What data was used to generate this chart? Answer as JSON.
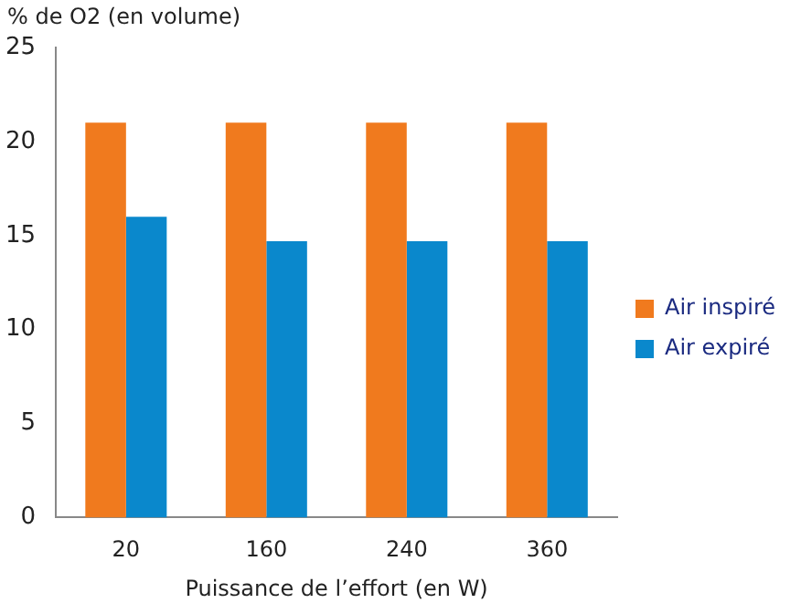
{
  "chart_data": {
    "type": "bar",
    "ylabel": "% de O2 (en volume)",
    "xlabel": "Puissance de l’effort (en W)",
    "categories": [
      "20",
      "160",
      "240",
      "360"
    ],
    "series": [
      {
        "name": "Air inspiré",
        "color": "#f07a1e",
        "values": [
          21,
          21,
          21,
          21
        ]
      },
      {
        "name": "Air expiré",
        "color": "#0a88cc",
        "values": [
          16,
          14.7,
          14.7,
          14.7
        ]
      }
    ],
    "ylim": [
      0,
      25
    ],
    "yticks": [
      0,
      5,
      10,
      15,
      20,
      25
    ],
    "grid": false,
    "legend": "right"
  }
}
